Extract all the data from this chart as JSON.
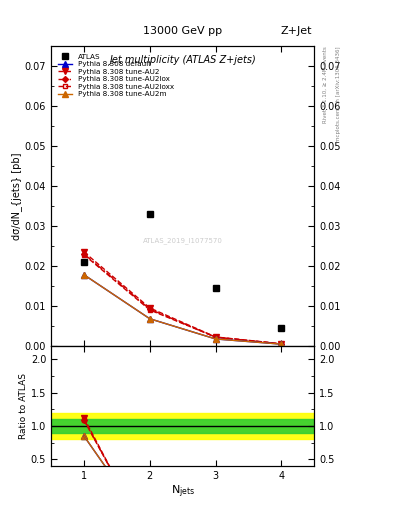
{
  "title_center": "13000 GeV pp",
  "title_right": "Z+Jet",
  "plot_title": "Jet multiplicity (ATLAS Z+jets)",
  "ylabel_main": "dσ/dN_{jets} [pb]",
  "ylabel_ratio": "Ratio to ATLAS",
  "xlabel": "N_{jets}",
  "right_label_top": "Rivet 3.1.10, ≥ 2.4M events",
  "right_label_bottom": "mcplots.cern.ch [arXiv:1306.3436]",
  "watermark": "ATLAS_2019_I1077570",
  "njets": [
    1,
    2,
    3,
    4
  ],
  "atlas_data": [
    0.021,
    0.033,
    0.0145,
    0.0045
  ],
  "pythia_default": [
    0.0178,
    0.0068,
    0.00175,
    0.00045
  ],
  "pythia_AU2": [
    0.0235,
    0.0095,
    0.00225,
    0.00055
  ],
  "pythia_AU2lox": [
    0.023,
    0.0092,
    0.0022,
    0.00052
  ],
  "pythia_AU2loxx": [
    0.0228,
    0.009,
    0.0022,
    0.00051
  ],
  "pythia_AU2m": [
    0.0178,
    0.0068,
    0.00175,
    0.00045
  ],
  "color_default": "#0000cc",
  "color_AU2": "#cc0000",
  "color_AU2lox": "#cc0000",
  "color_AU2loxx": "#cc0000",
  "color_AU2m": "#cc6600",
  "ylim_main": [
    0.0,
    0.075
  ],
  "ylim_ratio": [
    0.4,
    2.2
  ],
  "green_band_lo": 0.9,
  "green_band_hi": 1.1,
  "yellow_band_lo": 0.8,
  "yellow_band_hi": 1.2,
  "ratio_default_njet1": 0.848,
  "ratio_AU2_njet1": 1.119,
  "ratio_AU2lox_njet1": 1.095,
  "ratio_AU2loxx_njet1": 1.086,
  "ratio_AU2m_njet1": 0.848
}
